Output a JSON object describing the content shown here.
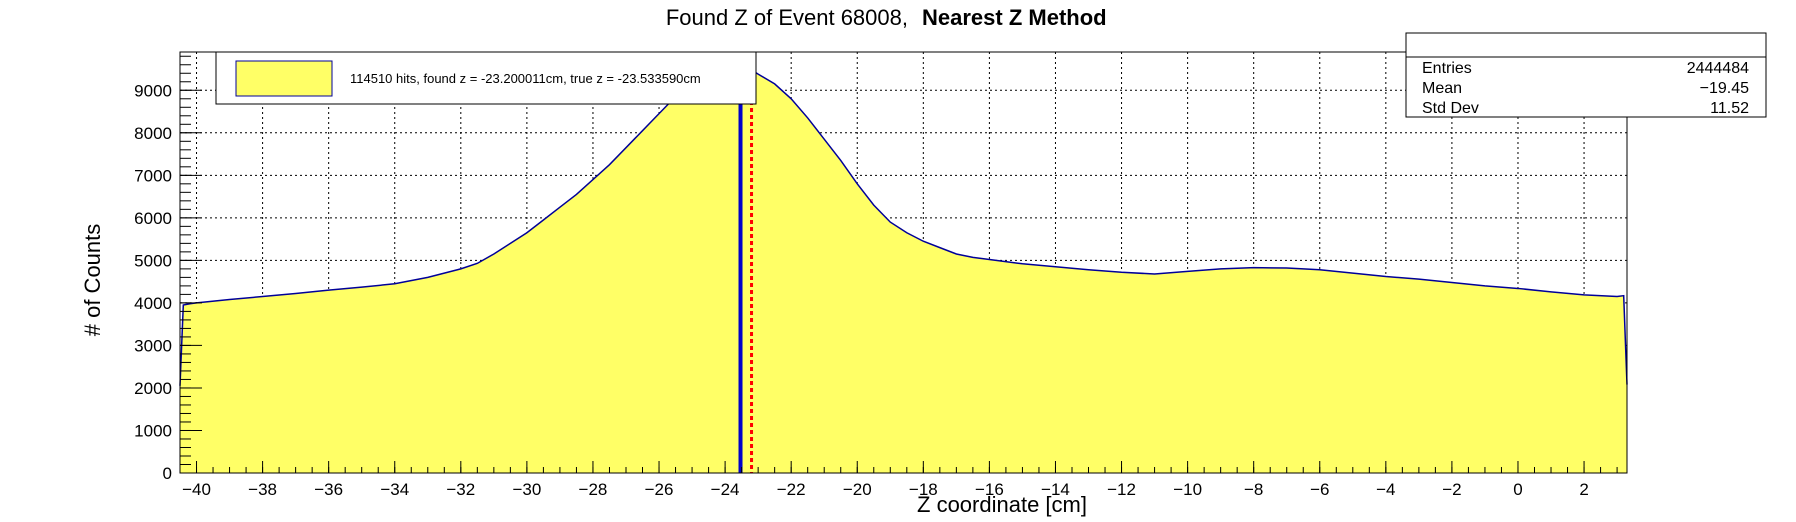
{
  "chart_data": {
    "type": "area",
    "title": "Found Z of Event 68008,",
    "title_bold": "Nearest Z Method",
    "xlabel": "Z coordinate [cm]",
    "ylabel": "# of Counts",
    "xlim": [
      -40.5,
      3.3
    ],
    "ylim": [
      0,
      9900
    ],
    "x_ticks": [
      -40,
      -38,
      -36,
      -34,
      -32,
      -30,
      -28,
      -26,
      -24,
      -22,
      -20,
      -18,
      -16,
      -14,
      -12,
      -10,
      -8,
      -6,
      -4,
      -2,
      0,
      2
    ],
    "y_ticks": [
      0,
      1000,
      2000,
      3000,
      4000,
      5000,
      6000,
      7000,
      8000,
      9000
    ],
    "grid": true,
    "fill_color": "#ffff66",
    "line_color": "#000099",
    "x": [
      -40.5,
      -40.4,
      -40.2,
      -40,
      -39,
      -38,
      -37,
      -36,
      -35,
      -34,
      -33,
      -32,
      -31.5,
      -31,
      -30.5,
      -30,
      -29.5,
      -29,
      -28.5,
      -28,
      -27.5,
      -27,
      -26.5,
      -26,
      -25.5,
      -25,
      -24.5,
      -24,
      -23.5,
      -23.2,
      -23,
      -22.5,
      -22,
      -21.5,
      -21,
      -20.5,
      -20,
      -19.5,
      -19,
      -18.5,
      -18,
      -17.5,
      -17,
      -16.5,
      -16,
      -15,
      -14,
      -13,
      -12,
      -11,
      -10,
      -9,
      -8,
      -7,
      -6,
      -5,
      -4,
      -3,
      -2,
      -1,
      0,
      1,
      2,
      3,
      3.2,
      3.3
    ],
    "y": [
      2050,
      3950,
      3980,
      4000,
      4080,
      4150,
      4220,
      4300,
      4370,
      4450,
      4600,
      4800,
      4930,
      5150,
      5400,
      5650,
      5950,
      6250,
      6550,
      6900,
      7250,
      7650,
      8050,
      8450,
      8850,
      9200,
      9420,
      9500,
      9500,
      9480,
      9380,
      9150,
      8800,
      8350,
      7850,
      7350,
      6800,
      6300,
      5900,
      5650,
      5450,
      5300,
      5150,
      5070,
      5020,
      4920,
      4850,
      4780,
      4720,
      4680,
      4740,
      4800,
      4830,
      4820,
      4780,
      4700,
      4620,
      4560,
      4480,
      4400,
      4340,
      4260,
      4190,
      4150,
      4170,
      2080
    ],
    "stats": {
      "entries_label": "Entries",
      "entries_value": "2444484",
      "mean_label": "Mean",
      "mean_value": "−19.45",
      "stddev_label": "Std Dev",
      "stddev_value": "11.52"
    },
    "legend": {
      "text": "114510 hits, found z = -23.200011cm, true z = -23.533590cm",
      "swatch_color": "#ffff66"
    },
    "markers": [
      {
        "name": "true-z-line",
        "x": -23.53359,
        "color": "#0000cc",
        "style": "solid"
      },
      {
        "name": "found-z-line",
        "x": -23.200011,
        "color": "#ff0000",
        "style": "dotted"
      }
    ]
  }
}
